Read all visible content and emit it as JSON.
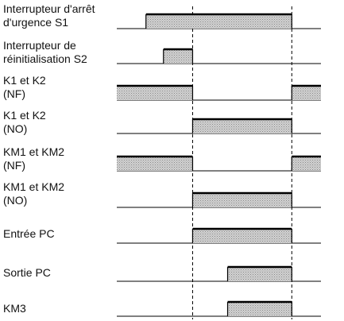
{
  "signals": [
    {
      "label_lines": [
        "Interrupteur d'arrêt",
        "d'urgence S1"
      ],
      "highs": [
        [
          1,
          6
        ]
      ]
    },
    {
      "label_lines": [
        "Interrupteur de",
        "réinitialisation S2"
      ],
      "highs": [
        [
          1.6,
          2.6
        ]
      ]
    },
    {
      "label_lines": [
        "K1 et K2",
        "(NF)"
      ],
      "highs": [
        [
          0,
          2.6
        ],
        [
          6,
          7
        ]
      ]
    },
    {
      "label_lines": [
        "K1 et K2",
        "(NO)"
      ],
      "highs": [
        [
          2.6,
          6
        ]
      ]
    },
    {
      "label_lines": [
        "KM1 et KM2",
        "(NF)"
      ],
      "highs": [
        [
          0,
          2.6
        ],
        [
          6,
          7
        ]
      ]
    },
    {
      "label_lines": [
        "KM1 et KM2",
        "(NO)"
      ],
      "highs": [
        [
          2.6,
          6
        ]
      ]
    },
    {
      "label_lines": [
        "Entrée PC"
      ],
      "highs": [
        [
          2.6,
          6
        ]
      ]
    },
    {
      "label_lines": [
        "Sortie PC"
      ],
      "highs": [
        [
          3.8,
          6
        ]
      ]
    },
    {
      "label_lines": [
        "KM3"
      ],
      "highs": [
        [
          3.8,
          6
        ]
      ]
    }
  ],
  "time_range": [
    0,
    7
  ],
  "markers": [
    2.6,
    6
  ],
  "colors": {
    "line": "#000000",
    "fill": "#c8c8c8",
    "text": "#111111"
  }
}
